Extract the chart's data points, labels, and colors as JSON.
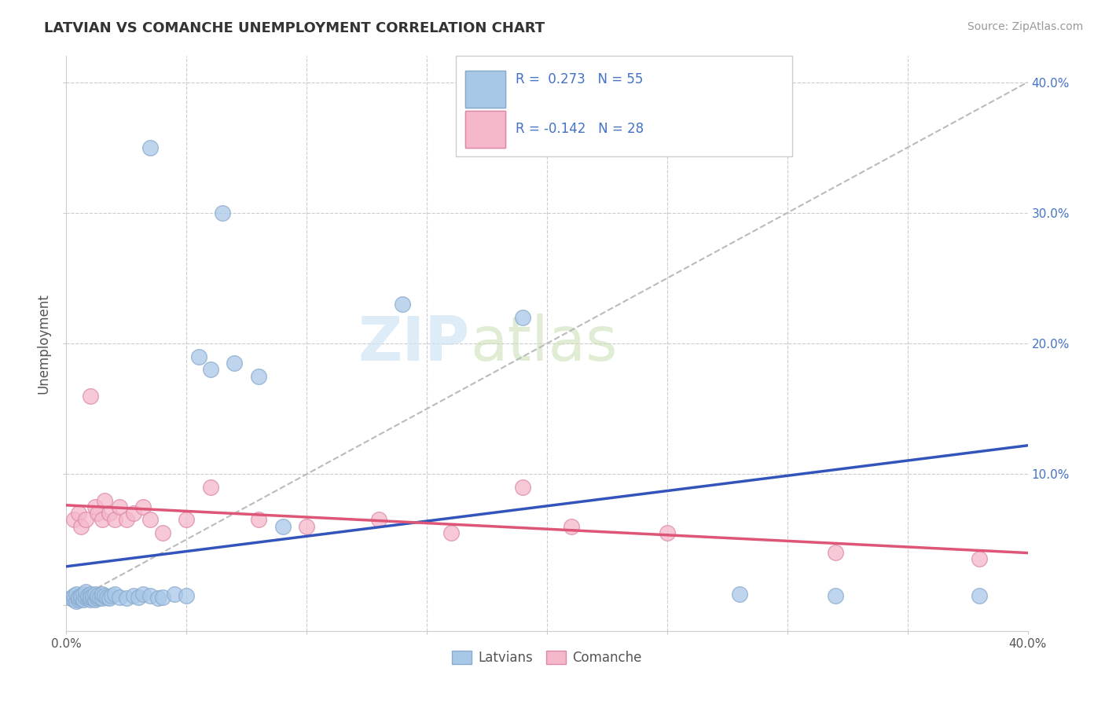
{
  "title": "LATVIAN VS COMANCHE UNEMPLOYMENT CORRELATION CHART",
  "source": "Source: ZipAtlas.com",
  "ylabel": "Unemployment",
  "xlim": [
    0.0,
    0.4
  ],
  "ylim": [
    -0.02,
    0.42
  ],
  "latvian_r": 0.273,
  "latvian_n": 55,
  "comanche_r": -0.142,
  "comanche_n": 28,
  "latvian_color": "#a8c8e8",
  "latvian_edge_color": "#88aacc",
  "latvian_line_color": "#3355bb",
  "comanche_color": "#f5b8ca",
  "comanche_edge_color": "#dd88aa",
  "comanche_line_color": "#dd5577",
  "watermark_color": "#d0e4f5",
  "background_color": "#ffffff",
  "grid_color": "#cccccc",
  "lat_x": [
    0.002,
    0.003,
    0.003,
    0.004,
    0.004,
    0.005,
    0.005,
    0.005,
    0.006,
    0.006,
    0.007,
    0.007,
    0.008,
    0.008,
    0.009,
    0.009,
    0.01,
    0.01,
    0.01,
    0.011,
    0.011,
    0.012,
    0.012,
    0.013,
    0.013,
    0.014,
    0.015,
    0.015,
    0.016,
    0.017,
    0.018,
    0.019,
    0.02,
    0.022,
    0.025,
    0.028,
    0.03,
    0.032,
    0.035,
    0.038,
    0.04,
    0.045,
    0.05,
    0.055,
    0.06,
    0.07,
    0.08,
    0.09,
    0.035,
    0.065,
    0.14,
    0.19,
    0.28,
    0.32,
    0.38
  ],
  "lat_y": [
    0.005,
    0.004,
    0.007,
    0.003,
    0.008,
    0.005,
    0.004,
    0.006,
    0.005,
    0.007,
    0.004,
    0.008,
    0.006,
    0.01,
    0.005,
    0.007,
    0.004,
    0.008,
    0.006,
    0.005,
    0.007,
    0.004,
    0.008,
    0.005,
    0.007,
    0.006,
    0.005,
    0.008,
    0.007,
    0.006,
    0.005,
    0.007,
    0.008,
    0.006,
    0.005,
    0.007,
    0.006,
    0.008,
    0.007,
    0.005,
    0.006,
    0.008,
    0.007,
    0.19,
    0.18,
    0.185,
    0.175,
    0.06,
    0.35,
    0.3,
    0.23,
    0.22,
    0.008,
    0.007,
    0.007
  ],
  "com_x": [
    0.003,
    0.005,
    0.006,
    0.008,
    0.01,
    0.012,
    0.013,
    0.015,
    0.016,
    0.018,
    0.02,
    0.022,
    0.025,
    0.028,
    0.032,
    0.035,
    0.04,
    0.05,
    0.06,
    0.08,
    0.1,
    0.13,
    0.16,
    0.19,
    0.21,
    0.25,
    0.32,
    0.38
  ],
  "com_y": [
    0.065,
    0.07,
    0.06,
    0.065,
    0.16,
    0.075,
    0.07,
    0.065,
    0.08,
    0.07,
    0.065,
    0.075,
    0.065,
    0.07,
    0.075,
    0.065,
    0.055,
    0.065,
    0.09,
    0.065,
    0.06,
    0.065,
    0.055,
    0.09,
    0.06,
    0.055,
    0.04,
    0.035
  ]
}
